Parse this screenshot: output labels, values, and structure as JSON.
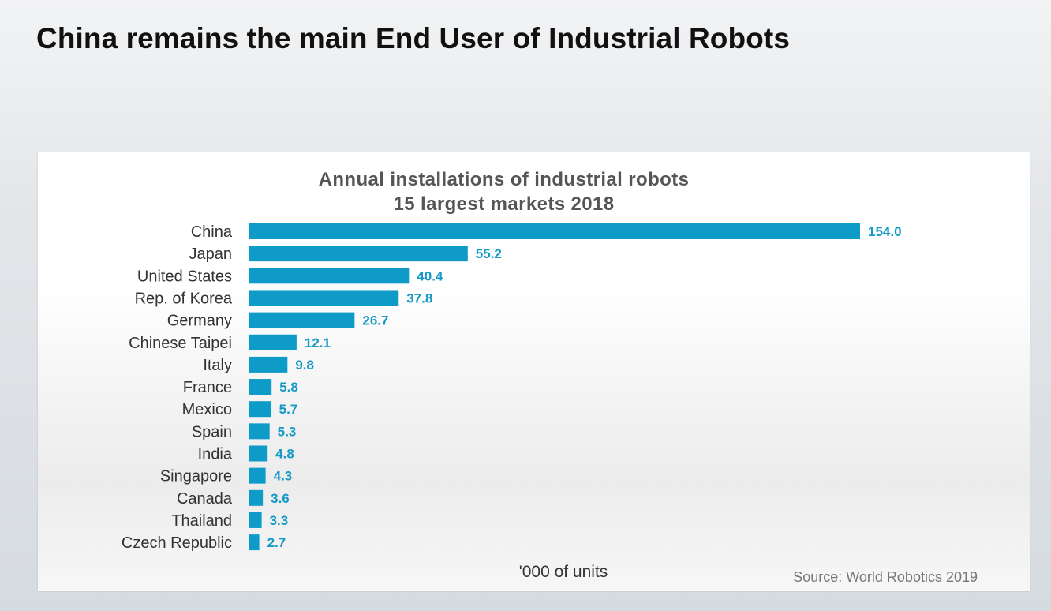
{
  "slide": {
    "title": "China remains the main End User of Industrial Robots"
  },
  "chart_data": {
    "type": "bar",
    "orientation": "horizontal",
    "title_line1": "Annual installations of industrial robots",
    "title_line2": "15 largest markets 2018",
    "categories": [
      "China",
      "Japan",
      "United States",
      "Rep. of Korea",
      "Germany",
      "Chinese Taipei",
      "Italy",
      "France",
      "Mexico",
      "Spain",
      "India",
      "Singapore",
      "Canada",
      "Thailand",
      "Czech Republic"
    ],
    "values": [
      154.0,
      55.2,
      40.4,
      37.8,
      26.7,
      12.1,
      9.8,
      5.8,
      5.7,
      5.3,
      4.8,
      4.3,
      3.6,
      3.3,
      2.7
    ],
    "value_labels": [
      "154.0",
      "55.2",
      "40.4",
      "37.8",
      "26.7",
      "12.1",
      "9.8",
      "5.8",
      "5.7",
      "5.3",
      "4.8",
      "4.3",
      "3.6",
      "3.3",
      "2.7"
    ],
    "xlabel": "'000 of units",
    "ylabel": "",
    "xlim": [
      0,
      154.0
    ],
    "bar_color": "#0f9bc8",
    "label_color": "#1499c6",
    "source": "Source: World Robotics 2019"
  }
}
